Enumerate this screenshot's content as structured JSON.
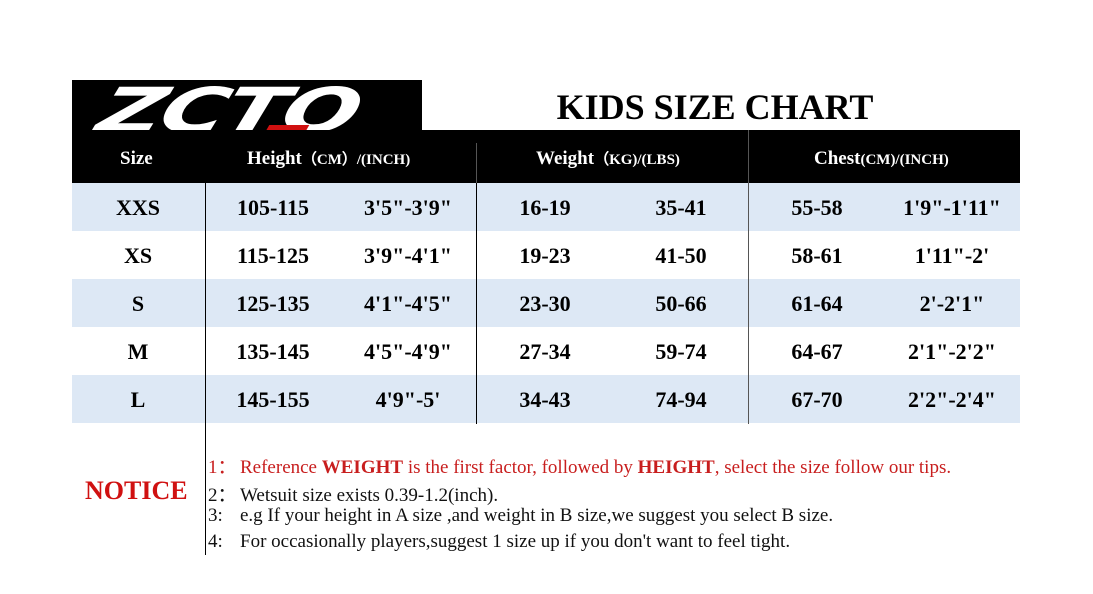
{
  "logo": {
    "text": "ZCTO",
    "accent": "#d01010"
  },
  "title": "KIDS SIZE CHART",
  "header": {
    "size": "Size",
    "height": "Height",
    "height_units": "（CM）/(INCH)",
    "weight": "Weight",
    "weight_units": "（KG)/(LBS)",
    "chest": "Chest",
    "chest_units": "(CM)/(INCH)"
  },
  "rows": [
    {
      "size": "XXS",
      "height_cm": "105-115",
      "height_in": "3'5\"-3'9\"",
      "weight_kg": "16-19",
      "weight_lbs": "35-41",
      "chest_cm": "55-58",
      "chest_in": "1'9\"-1'11\""
    },
    {
      "size": "XS",
      "height_cm": "115-125",
      "height_in": "3'9\"-4'1\"",
      "weight_kg": "19-23",
      "weight_lbs": "41-50",
      "chest_cm": "58-61",
      "chest_in": "1'11\"-2'"
    },
    {
      "size": "S",
      "height_cm": "125-135",
      "height_in": "4'1\"-4'5\"",
      "weight_kg": "23-30",
      "weight_lbs": "50-66",
      "chest_cm": "61-64",
      "chest_in": "2'-2'1\""
    },
    {
      "size": "M",
      "height_cm": "135-145",
      "height_in": "4'5\"-4'9\"",
      "weight_kg": "27-34",
      "weight_lbs": "59-74",
      "chest_cm": "64-67",
      "chest_in": "2'1\"-2'2\""
    },
    {
      "size": "L",
      "height_cm": "145-155",
      "height_in": "4'9\"-5'",
      "weight_kg": "34-43",
      "weight_lbs": "74-94",
      "chest_cm": "67-70",
      "chest_in": "2'2\"-2'4\""
    }
  ],
  "notice": {
    "label": "NOTICE",
    "items": [
      {
        "num": "1：",
        "parts": [
          "Reference ",
          "WEIGHT",
          " is the first factor, followed by ",
          "HEIGHT",
          ", select the size follow our tips."
        ]
      },
      {
        "num": "2：",
        "text": "Wetsuit size exists 0.39-1.2(inch)."
      },
      {
        "num": "3:",
        "text": "e.g  If your height in A size ,and weight in B size,we suggest you select B size."
      },
      {
        "num": "4:",
        "text": "For occasionally players,suggest 1 size up if you don't want to feel tight."
      }
    ]
  },
  "colors": {
    "header_bg": "#000000",
    "row_alt": "#dde8f5",
    "notice_red": "#c81e1e"
  }
}
